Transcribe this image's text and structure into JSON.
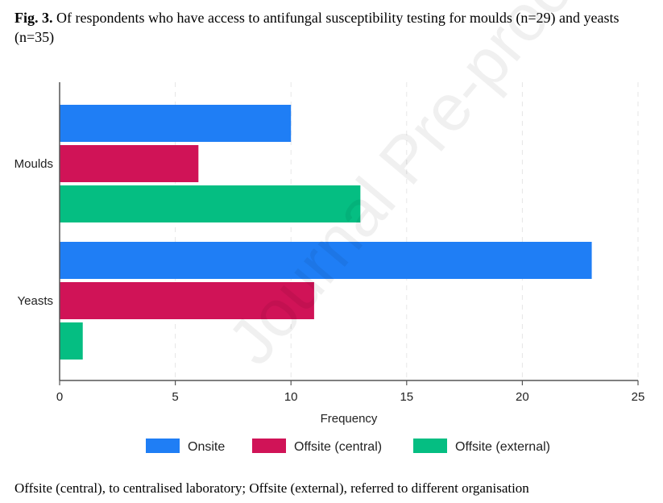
{
  "caption": {
    "fig_label": "Fig. 3.",
    "text": "Of respondents who have access to antifungal susceptibility testing for moulds (n=29) and yeasts (n=35)"
  },
  "footnote": "Offsite (central), to centralised laboratory; Offsite (external), referred to different organisation",
  "watermark": "Journal Pre-proof",
  "chart_data": {
    "type": "bar",
    "orientation": "horizontal",
    "categories": [
      "Moulds",
      "Yeasts"
    ],
    "series": [
      {
        "name": "Onsite",
        "color": "#1f7ef5",
        "values": [
          10,
          23
        ]
      },
      {
        "name": "Offsite (central)",
        "color": "#d01357",
        "values": [
          6,
          11
        ]
      },
      {
        "name": "Offsite (external)",
        "color": "#05be82",
        "values": [
          13,
          1
        ]
      }
    ],
    "xlabel": "Frequency",
    "ylabel": "",
    "xlim": [
      0,
      25
    ],
    "xticks": [
      0,
      5,
      10,
      15,
      20,
      25
    ],
    "grid": true,
    "legend_position": "bottom"
  }
}
